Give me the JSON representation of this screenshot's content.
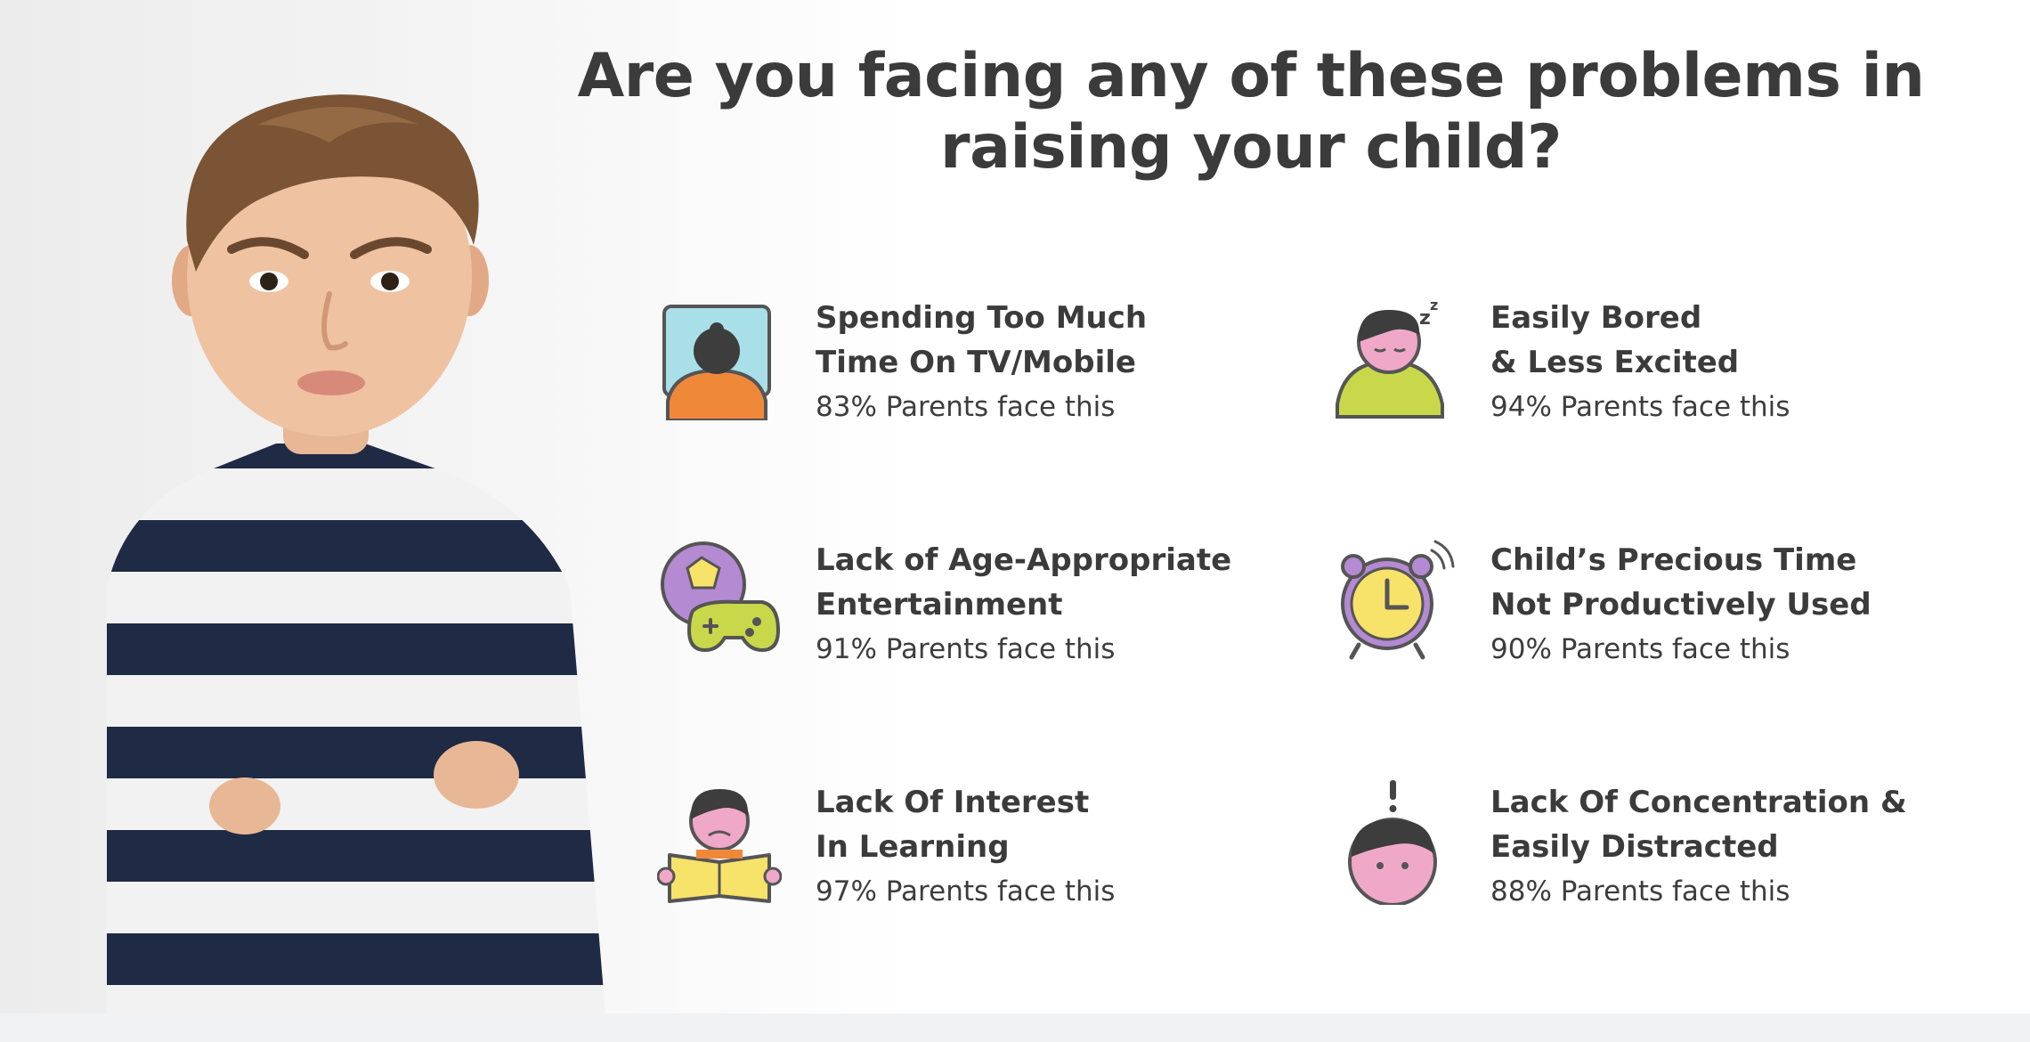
{
  "headline": {
    "line1": "Are you facing any of these problems in",
    "line2": "raising your child?"
  },
  "problems": [
    {
      "icon": "tv-screen-icon",
      "title_line1": "Spending Too Much",
      "title_line2": "Time On TV/Mobile",
      "stat": "83% Parents face this"
    },
    {
      "icon": "bored-child-icon",
      "title_line1": "Easily Bored",
      "title_line2": "& Less Excited",
      "stat": "94% Parents face this"
    },
    {
      "icon": "ball-gamepad-icon",
      "title_line1": "Lack of Age-Appropriate",
      "title_line2": "Entertainment",
      "stat": "91% Parents face this"
    },
    {
      "icon": "alarm-clock-icon",
      "title_line1": "Child’s Precious Time",
      "title_line2": "Not Productively Used",
      "stat": "90% Parents face this"
    },
    {
      "icon": "reading-child-icon",
      "title_line1": "Lack Of Interest",
      "title_line2": "In Learning",
      "stat": "97% Parents face this"
    },
    {
      "icon": "distracted-child-icon",
      "title_line1": "Lack Of Concentration &",
      "title_line2": "Easily Distracted",
      "stat": "88% Parents face this"
    }
  ],
  "colors": {
    "text": "#3b3b3b",
    "orange": "#f0883a",
    "pink": "#f0a8c8",
    "lime": "#c8d84a",
    "yellow": "#f7e26a",
    "purple": "#b48ad2",
    "light_blue": "#a9dfe8",
    "dark_hair": "#3d3d3d",
    "sweater_navy": "#1f2a44"
  }
}
